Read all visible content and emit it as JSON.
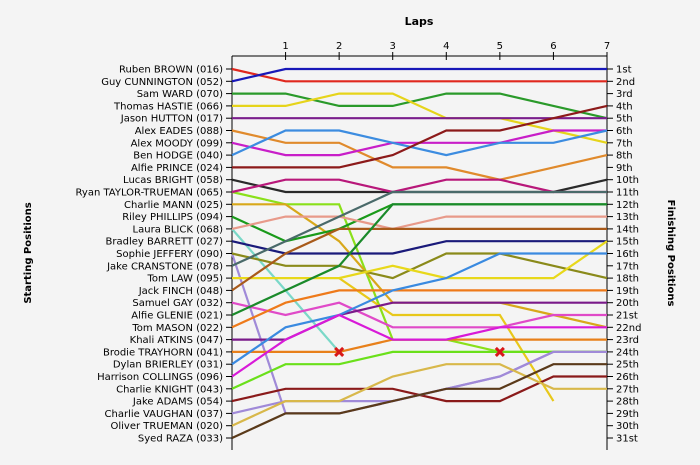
{
  "chart_data": {
    "type": "line",
    "title": "Laps",
    "ylabel_left": "Starting Positions",
    "ylabel_right": "Finishing Positions",
    "x": [
      0,
      1,
      2,
      3,
      4,
      5,
      6,
      7
    ],
    "x_tick_labels": [
      "1",
      "2",
      "3",
      "4",
      "5",
      "6",
      "7"
    ],
    "xlim": [
      0,
      7
    ],
    "ylim": [
      1,
      31
    ],
    "y_inverted": true,
    "grid": false,
    "starting_labels": [
      "Ruben BROWN (016)",
      "Guy CUNNINGTON (052)",
      "Sam WARD (070)",
      "Thomas HASTIE (066)",
      "Jason HUTTON (017)",
      "Alex EADES (088)",
      "Alex MOODY (099)",
      "Ben HODGE (040)",
      "Alfie PRINCE (024)",
      "Lucas BRIGHT (058)",
      "Ryan TAYLOR-TRUEMAN (065)",
      "Charlie MANN (025)",
      "Riley PHILLIPS (094)",
      "Laura BLICK (068)",
      "Bradley BARRETT (027)",
      "Sophie JEFFERY (090)",
      "Jake CRANSTONE (078)",
      "Tom LAW (095)",
      "Jack FINCH (048)",
      "Samuel GAY (032)",
      "Alfie GLENIE (021)",
      "Tom MASON (022)",
      "Khali ATKINS (047)",
      "Brodie TRAYHORN (041)",
      "Dylan BRIERLEY (031)",
      "Harrison COLLINGS (096)",
      "Charlie KNIGHT (043)",
      "Jake ADAMS (054)",
      "Charlie VAUGHAN (037)",
      "Oliver TRUEMAN (020)",
      "Syed RAZA (033)"
    ],
    "finishing_labels": [
      "1st",
      "2nd",
      "3rd",
      "4th",
      "5th",
      "6th",
      "7th",
      "8th",
      "9th",
      "10th",
      "11th",
      "12th",
      "13th",
      "14th",
      "15th",
      "16th",
      "17th",
      "18th",
      "19th",
      "20th",
      "21st",
      "22nd",
      "23rd",
      "24th",
      "25th",
      "26th",
      "27th",
      "28th",
      "29th",
      "30th",
      "31st"
    ],
    "series": [
      {
        "positions": [
          1,
          2,
          2,
          2,
          2,
          2,
          2,
          2
        ],
        "color": "#e0281e"
      },
      {
        "positions": [
          2,
          1,
          1,
          1,
          1,
          1,
          1,
          1
        ],
        "color": "#1818b8"
      },
      {
        "positions": [
          3,
          3,
          4,
          4,
          3,
          3,
          4,
          5
        ],
        "color": "#2a9a2a"
      },
      {
        "positions": [
          4,
          4,
          3,
          3,
          5,
          5,
          6,
          7
        ],
        "color": "#e6d41a"
      },
      {
        "positions": [
          5,
          5,
          5,
          5,
          5,
          5,
          5,
          5
        ],
        "color": "#7a1e8c"
      },
      {
        "positions": [
          6,
          7,
          7,
          9,
          9,
          10,
          9,
          8
        ],
        "color": "#e08a2c"
      },
      {
        "positions": [
          7,
          8,
          8,
          7,
          7,
          7,
          6,
          6
        ],
        "color": "#c81ec8"
      },
      {
        "positions": [
          8,
          6,
          6,
          7,
          8,
          7,
          7,
          6
        ],
        "color": "#3c8ce0"
      },
      {
        "positions": [
          9,
          9,
          9,
          8,
          6,
          6,
          5,
          4
        ],
        "color": "#8c1a1a"
      },
      {
        "positions": [
          10,
          11,
          11,
          11,
          11,
          11,
          11,
          10
        ],
        "color": "#2a2a2a"
      },
      {
        "positions": [
          11,
          10,
          10,
          11,
          10,
          10,
          11,
          11
        ],
        "color": "#b8187a"
      },
      {
        "positions": [
          12,
          12,
          15,
          20,
          20,
          20,
          21,
          22
        ],
        "color": "#d8a81a"
      },
      {
        "positions": [
          13,
          15,
          14,
          12,
          12,
          12,
          12,
          12
        ],
        "color": "#1a9a1a"
      },
      {
        "positions": [
          14,
          13,
          13,
          14,
          13,
          13,
          13,
          13
        ],
        "color": "#e89a8a"
      },
      {
        "positions": [
          15,
          16,
          16,
          16,
          15,
          15,
          15,
          15
        ],
        "color": "#1a1a7a"
      },
      {
        "positions": [
          16,
          17,
          17,
          18,
          16,
          16,
          17,
          18
        ],
        "color": "#8a8a1a"
      },
      {
        "positions": [
          17,
          15,
          13,
          11,
          11,
          11,
          11,
          11
        ],
        "color": "#4a6a6a"
      },
      {
        "positions": [
          18,
          18,
          18,
          17,
          18,
          18,
          18,
          15
        ],
        "color": "#e8d81a"
      },
      {
        "positions": [
          19,
          16,
          14,
          14,
          14,
          14,
          14,
          14
        ],
        "color": "#a85a1a"
      },
      {
        "positions": [
          20,
          21,
          20,
          22,
          22,
          22,
          21,
          21
        ],
        "color": "#e04ac8"
      },
      {
        "positions": [
          21,
          19,
          17,
          12,
          12,
          12,
          12,
          12
        ],
        "color": "#1a8a2a"
      },
      {
        "positions": [
          22,
          20,
          19,
          19,
          19,
          19,
          19,
          19
        ],
        "color": "#ee7a1a"
      },
      {
        "positions": [
          23,
          23,
          21,
          20,
          20,
          20,
          20,
          20
        ],
        "color": "#7a1a8a"
      },
      {
        "positions": [
          24,
          24,
          24,
          23,
          23,
          23,
          23,
          23
        ],
        "color": "#e8801a"
      },
      {
        "positions": [
          25,
          22,
          21,
          19,
          18,
          16,
          16,
          16
        ],
        "color": "#3a8ae0"
      },
      {
        "positions": [
          26,
          23,
          21,
          23,
          23,
          22,
          22,
          22
        ],
        "color": "#d81ad8"
      },
      {
        "positions": [
          27,
          25,
          25,
          24,
          24,
          24,
          24,
          24
        ],
        "color": "#6ae01a"
      },
      {
        "positions": [
          28,
          27,
          27,
          27,
          28,
          28,
          26,
          26
        ],
        "color": "#8a1a1a"
      },
      {
        "positions": [
          29,
          28,
          28,
          28,
          27,
          26,
          24,
          24
        ],
        "color": "#a08ad8"
      },
      {
        "positions": [
          30,
          28,
          28,
          26,
          25,
          25,
          27,
          27
        ],
        "color": "#d8b84a"
      },
      {
        "positions": [
          31,
          29,
          29,
          28,
          27,
          27,
          25,
          25
        ],
        "color": "#5a3a1a"
      }
    ],
    "extra_lines": [
      {
        "points": [
          [
            0,
            14
          ],
          [
            2,
            24
          ]
        ],
        "color": "#7ad8c8"
      },
      {
        "points": [
          [
            0,
            16
          ],
          [
            1,
            29
          ],
          [
            2,
            29
          ],
          [
            4,
            27
          ],
          [
            5,
            26
          ],
          [
            6,
            24
          ],
          [
            7,
            24
          ]
        ],
        "color": "#a08ad8"
      },
      {
        "points": [
          [
            0,
            11
          ],
          [
            1,
            12
          ],
          [
            2,
            12
          ],
          [
            3,
            23
          ],
          [
            4,
            23
          ],
          [
            5,
            24
          ],
          [
            6,
            24
          ],
          [
            7,
            24
          ]
        ],
        "color": "#8ae01a"
      },
      {
        "points": [
          [
            2,
            18
          ],
          [
            3,
            21
          ],
          [
            4,
            21
          ],
          [
            5,
            21
          ],
          [
            6,
            28
          ]
        ],
        "color": "#e8c81a"
      }
    ],
    "markers": [
      {
        "x": 2,
        "y": 24,
        "symbol": "x",
        "color": "#d81818"
      },
      {
        "x": 5,
        "y": 24,
        "symbol": "x",
        "color": "#d81818"
      }
    ]
  }
}
